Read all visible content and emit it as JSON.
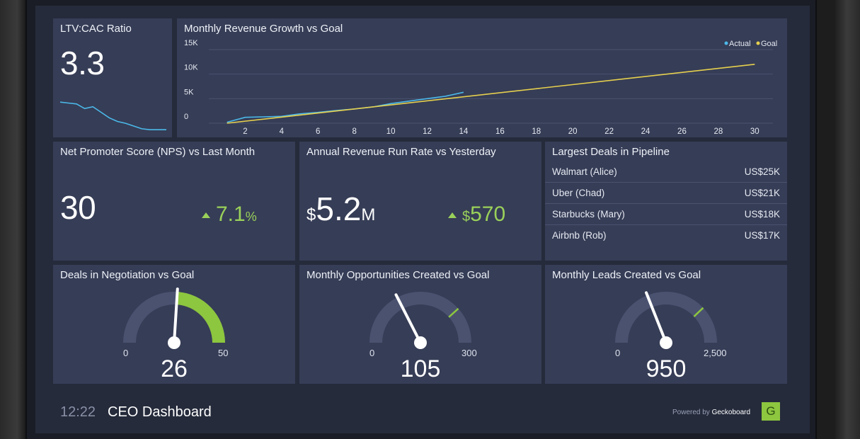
{
  "tiles": {
    "ltv": {
      "title": "LTV:CAC Ratio",
      "value": "3.3",
      "sparkline": [
        0.72,
        0.7,
        0.68,
        0.58,
        0.62,
        0.5,
        0.38,
        0.3,
        0.26,
        0.2,
        0.14,
        0.12,
        0.12,
        0.12
      ]
    },
    "revenue_chart": {
      "title": "Monthly Revenue Growth vs Goal"
    },
    "nps": {
      "title": "Net Promoter Score (NPS) vs Last Month",
      "value": "30",
      "delta": "7.1",
      "delta_unit": "%"
    },
    "arr": {
      "title": "Annual Revenue Run Rate vs Yesterday",
      "prefix": "$",
      "value": "5.2",
      "suffix": "M",
      "delta_prefix": "$",
      "delta": "570"
    },
    "deals": {
      "title": "Largest Deals in Pipeline",
      "rows": [
        {
          "name": "Walmart (Alice)",
          "value": "US$25K"
        },
        {
          "name": "Uber (Chad)",
          "value": "US$21K"
        },
        {
          "name": "Starbucks (Mary)",
          "value": "US$18K"
        },
        {
          "name": "Airbnb (Rob)",
          "value": "US$17K"
        }
      ]
    },
    "g1": {
      "title": "Deals in Negotiation vs Goal",
      "min": "0",
      "max": "50",
      "value": "26",
      "val": 26,
      "maxNum": 50,
      "filled": true
    },
    "g2": {
      "title": "Monthly Opportunities Created vs Goal",
      "min": "0",
      "max": "300",
      "value": "105",
      "val": 105,
      "maxNum": 300,
      "goal": 230,
      "filled": false
    },
    "g3": {
      "title": "Monthly Leads Created vs Goal",
      "min": "0",
      "max": "2,500",
      "value": "950",
      "val": 950,
      "maxNum": 2500,
      "goal": 1900,
      "filled": false
    }
  },
  "footer": {
    "time": "12:22",
    "title": "CEO Dashboard",
    "powered_by": "Powered by",
    "brand": "Geckoboard",
    "logo_letter": "G"
  },
  "colors": {
    "actual": "#4bb8e8",
    "goal": "#e6d04e",
    "accent_green": "#8dc63f"
  },
  "chart_data": {
    "type": "line",
    "title": "Monthly Revenue Growth vs Goal",
    "x_ticks": [
      2,
      4,
      6,
      8,
      10,
      12,
      14,
      16,
      18,
      20,
      22,
      24,
      26,
      28,
      30
    ],
    "y_ticks": [
      "0",
      "5K",
      "10K",
      "15K"
    ],
    "xlim": [
      0,
      31
    ],
    "ylim": [
      0,
      15000
    ],
    "legend": "top-right",
    "series": [
      {
        "name": "Actual",
        "x": [
          1,
          2,
          3,
          4,
          5,
          6,
          7,
          8,
          9,
          10,
          11,
          12,
          13,
          14
        ],
        "y": [
          200,
          1200,
          1300,
          1400,
          1900,
          2200,
          2600,
          2900,
          3300,
          4000,
          4500,
          5000,
          5500,
          6300
        ]
      },
      {
        "name": "Goal",
        "x": [
          1,
          30
        ],
        "y": [
          0,
          12000
        ]
      }
    ]
  }
}
